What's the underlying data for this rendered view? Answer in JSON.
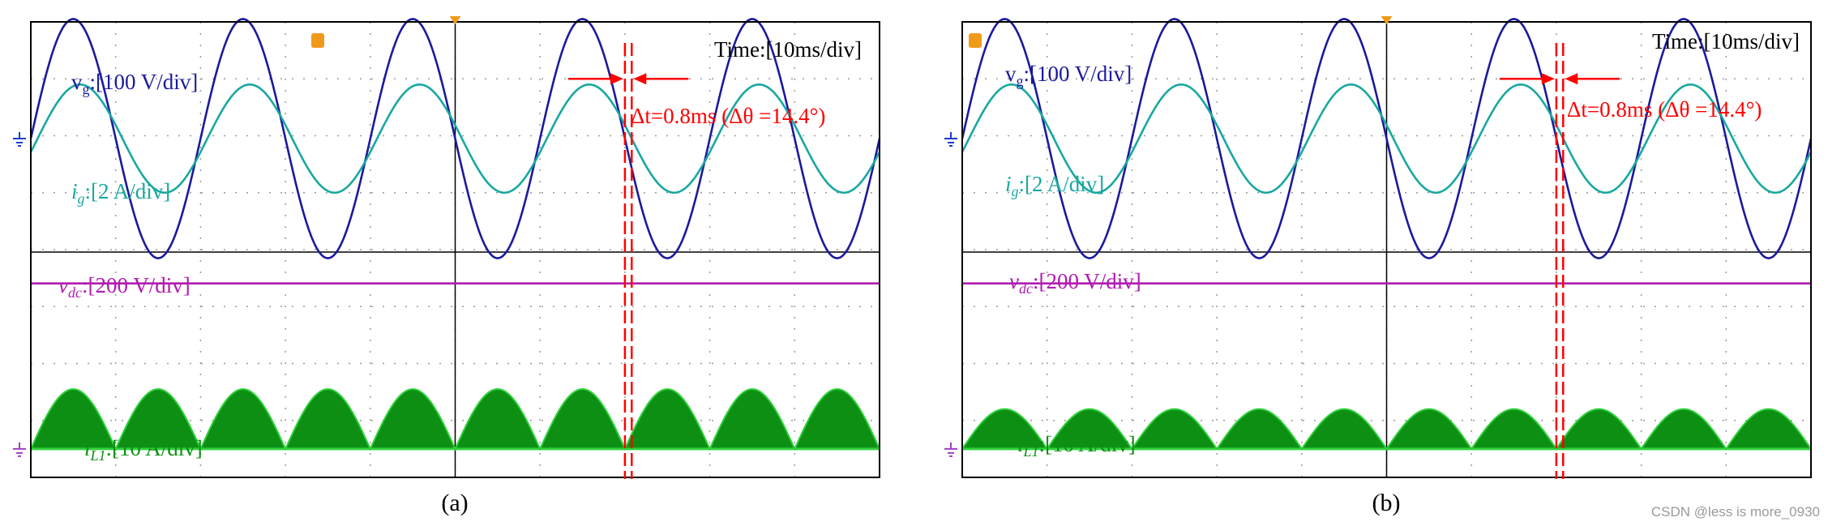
{
  "colors": {
    "vg": "#1a1a9c",
    "ig": "#19a8a0",
    "vdc": "#b01cb0",
    "iL1": "#0d8f14",
    "iL1_light": "#2ed13a",
    "cursor": "#ff0000",
    "grid": "#9a9a9a",
    "frame": "#000000"
  },
  "watermark": "CSDN @less is more_0930",
  "chart_data": [
    {
      "type": "line",
      "caption": "(a)",
      "time_label": "Time:[10ms/div]",
      "x": {
        "unit": "ms",
        "range": [
          0,
          100
        ],
        "div_ms": 10,
        "divisions": 10
      },
      "series": [
        {
          "name": "vg",
          "label_main": "v",
          "label_sub": "g",
          "label_scale": ":[100 V/div]",
          "type": "sine",
          "freq_hz": 50,
          "amplitude_div": 2.1,
          "offset_div": 0,
          "phase_deg": 0
        },
        {
          "name": "ig",
          "label_main": "i",
          "label_sub": "g",
          "label_scale": ":[2 A/div]",
          "type": "sine",
          "freq_hz": 50,
          "amplitude_div": 0.95,
          "offset_div": 0,
          "phase_deg": -14.4
        },
        {
          "name": "vdc",
          "label_main": "v",
          "label_sub": "dc",
          "label_scale": ":[200 V/div]",
          "type": "dc",
          "level_div": 0.55
        },
        {
          "name": "iL1",
          "label_main": "i",
          "label_sub": "L1",
          "label_scale": ":[10 A/div]",
          "type": "rectified",
          "freq_hz": 50,
          "peak_div": 1.05,
          "offset_div": 0
        }
      ],
      "annotation": {
        "text": "Δt=0.8ms (Δθ =14.4°)",
        "dt_ms": 0.8,
        "dtheta_deg": 14.4
      }
    },
    {
      "type": "line",
      "caption": "(b)",
      "time_label": "Time:[10ms/div]",
      "x": {
        "unit": "ms",
        "range": [
          0,
          100
        ],
        "div_ms": 10,
        "divisions": 10
      },
      "series": [
        {
          "name": "vg",
          "label_main": "v",
          "label_sub": "g",
          "label_scale": ":[100 V/div]",
          "type": "sine",
          "freq_hz": 50,
          "amplitude_div": 2.1,
          "offset_div": 0,
          "phase_deg": 0
        },
        {
          "name": "ig",
          "label_main": "i",
          "label_sub": "g",
          "label_scale": ":[2 A/div]",
          "type": "sine",
          "freq_hz": 50,
          "amplitude_div": 0.95,
          "offset_div": 0,
          "phase_deg": -14.4
        },
        {
          "name": "vdc",
          "label_main": "v",
          "label_sub": "dc",
          "label_scale": ":[200 V/div]",
          "type": "dc",
          "level_div": 0.55
        },
        {
          "name": "iL1",
          "label_main": "i",
          "label_sub": "L1",
          "label_scale": ":[10 A/div]",
          "type": "rectified",
          "freq_hz": 50,
          "peak_div": 0.7,
          "offset_div": 0
        }
      ],
      "annotation": {
        "text": "Δt=0.8ms (Δθ =14.4°)",
        "dt_ms": 0.8,
        "dtheta_deg": 14.4
      }
    }
  ]
}
